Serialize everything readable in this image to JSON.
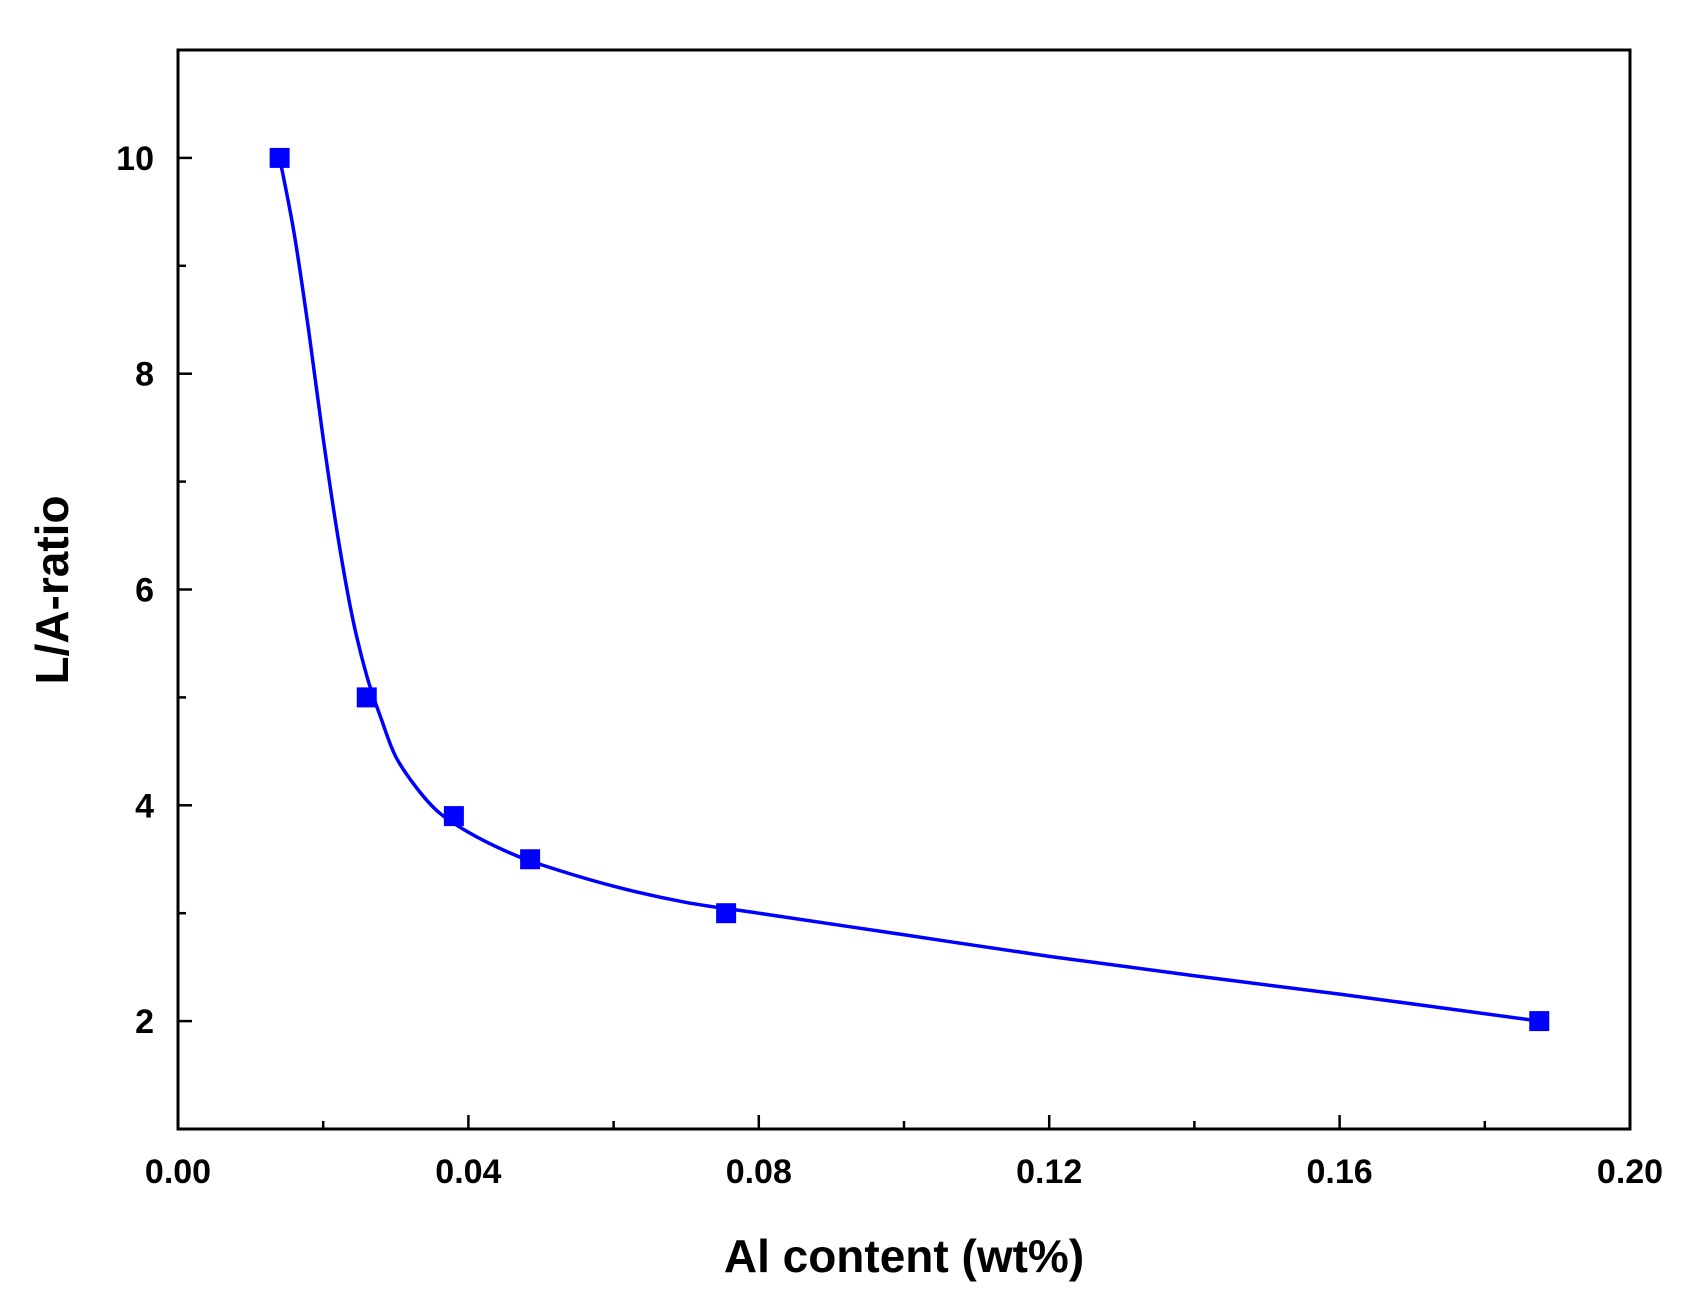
{
  "chart_data": {
    "type": "scatter",
    "xlabel": "Al content (wt%)",
    "ylabel": "L/A-ratio",
    "xlim": [
      0.0,
      0.2
    ],
    "ylim": [
      1.0,
      11.0
    ],
    "x_ticks": [
      "0.00",
      "0.04",
      "0.08",
      "0.12",
      "0.16",
      "0.20"
    ],
    "y_ticks": [
      "2",
      "4",
      "6",
      "8",
      "10"
    ],
    "grid": false,
    "legend": "none",
    "series": [
      {
        "marker": "square",
        "color": "#0000ff",
        "x": [
          0.014,
          0.026,
          0.038,
          0.0485,
          0.0755,
          0.1875
        ],
        "y": [
          10.0,
          5.0,
          3.9,
          3.5,
          3.0,
          2.0
        ]
      }
    ],
    "fit_curve": {
      "color": "#0000ff",
      "x": [
        0.014,
        0.016,
        0.018,
        0.02,
        0.022,
        0.024,
        0.026,
        0.028,
        0.03,
        0.033,
        0.036,
        0.04,
        0.045,
        0.05,
        0.06,
        0.07,
        0.08,
        0.1,
        0.12,
        0.14,
        0.16,
        0.1875
      ],
      "y": [
        10.0,
        9.3,
        8.4,
        7.4,
        6.5,
        5.75,
        5.2,
        4.8,
        4.45,
        4.15,
        3.93,
        3.75,
        3.58,
        3.45,
        3.25,
        3.1,
        3.0,
        2.8,
        2.6,
        2.42,
        2.25,
        2.0
      ]
    }
  }
}
